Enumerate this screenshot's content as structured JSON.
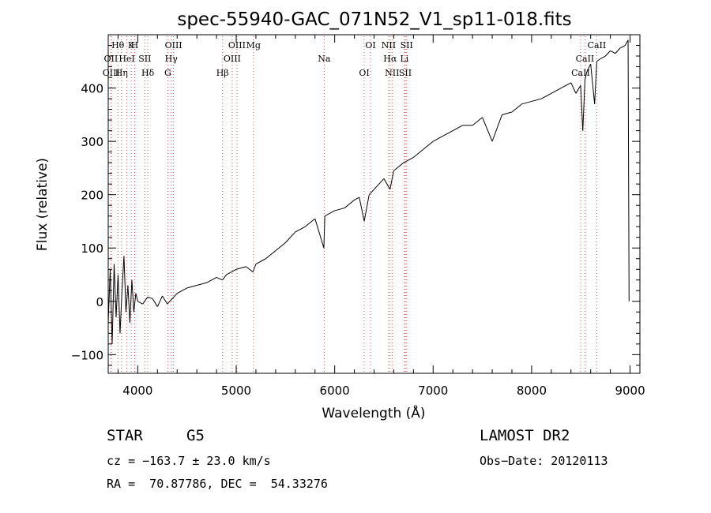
{
  "chart_data": {
    "type": "line",
    "title": "spec-55940-GAC_071N52_V1_sp11-018.fits",
    "xlabel": "Wavelength (Å)",
    "ylabel": "Flux (relative)",
    "xlim": [
      3700,
      9100
    ],
    "ylim": [
      -135,
      500
    ],
    "xticks": [
      4000,
      5000,
      6000,
      7000,
      8000,
      9000
    ],
    "yticks": [
      -100,
      0,
      100,
      200,
      300,
      400
    ],
    "grid": false,
    "series": [
      {
        "x": [
          3700,
          3720,
          3740,
          3760,
          3780,
          3800,
          3820,
          3840,
          3860,
          3880,
          3900,
          3920,
          3940,
          3960,
          3980,
          4000,
          4050,
          4100,
          4150,
          4200,
          4250,
          4300,
          4350,
          4400,
          4450,
          4500,
          4600,
          4700,
          4800,
          4860,
          4900,
          5000,
          5100,
          5170,
          5200,
          5300,
          5400,
          5500,
          5600,
          5700,
          5800,
          5890,
          5900,
          5950,
          6000,
          6100,
          6200,
          6250,
          6300,
          6350,
          6400,
          6500,
          6562,
          6600,
          6700,
          6800,
          6900,
          7000,
          7100,
          7200,
          7300,
          7400,
          7500,
          7600,
          7700,
          7800,
          7900,
          8000,
          8100,
          8200,
          8300,
          8400,
          8450,
          8498,
          8520,
          8542,
          8560,
          8600,
          8640,
          8662,
          8700,
          8750,
          8800,
          8850,
          8900,
          8950,
          8980,
          8990
        ],
        "y": [
          -40,
          60,
          -80,
          70,
          -30,
          50,
          -60,
          20,
          85,
          -20,
          30,
          -40,
          40,
          -20,
          15,
          0,
          -5,
          8,
          5,
          -10,
          10,
          -5,
          5,
          15,
          20,
          25,
          30,
          35,
          45,
          40,
          50,
          60,
          65,
          55,
          70,
          80,
          95,
          110,
          130,
          140,
          155,
          100,
          160,
          165,
          170,
          175,
          190,
          195,
          150,
          200,
          210,
          230,
          210,
          245,
          260,
          270,
          285,
          300,
          310,
          320,
          330,
          330,
          345,
          300,
          350,
          355,
          370,
          375,
          380,
          390,
          400,
          410,
          390,
          405,
          320,
          415,
          430,
          445,
          370,
          450,
          455,
          460,
          470,
          465,
          475,
          480,
          490,
          0
        ]
      }
    ],
    "lines": [
      {
        "name": "Hθ",
        "x": 3798
      },
      {
        "name": "OII",
        "x": 3727
      },
      {
        "name": "OIII",
        "x": 3730
      },
      {
        "name": "K",
        "x": 3934
      },
      {
        "name": "HeI",
        "x": 3889
      },
      {
        "name": "Hη",
        "x": 3835
      },
      {
        "name": "H",
        "x": 3968
      },
      {
        "name": "SII",
        "x": 4072
      },
      {
        "name": "Hδ",
        "x": 4102
      },
      {
        "name": "OIII",
        "x": 4363
      },
      {
        "name": "Hγ",
        "x": 4340
      },
      {
        "name": "G",
        "x": 4305
      },
      {
        "name": "OIII",
        "x": 5007
      },
      {
        "name": "OIII",
        "x": 4959
      },
      {
        "name": "Hβ",
        "x": 4861
      },
      {
        "name": "Mg",
        "x": 5175
      },
      {
        "name": "Na",
        "x": 5893
      },
      {
        "name": "OI",
        "x": 6300
      },
      {
        "name": "OI",
        "x": 6364
      },
      {
        "name": "Hα",
        "x": 6563
      },
      {
        "name": "SII",
        "x": 6717
      },
      {
        "name": "NII",
        "x": 6548
      },
      {
        "name": "Li",
        "x": 6708
      },
      {
        "name": "NII",
        "x": 6583
      },
      {
        "name": "SII",
        "x": 6731
      },
      {
        "name": "CaII",
        "x": 8542
      },
      {
        "name": "CaII",
        "x": 8498
      },
      {
        "name": "CaII",
        "x": 8662
      }
    ]
  },
  "info": {
    "object_class": "STAR",
    "subclass": "G5",
    "survey": "LAMOST DR2",
    "cz": "cz = −163.7 ± 23.0 km/s",
    "obs_date": "Obs−Date: 20120113",
    "coords": "RA =  70.87786, DEC =  54.33276"
  }
}
